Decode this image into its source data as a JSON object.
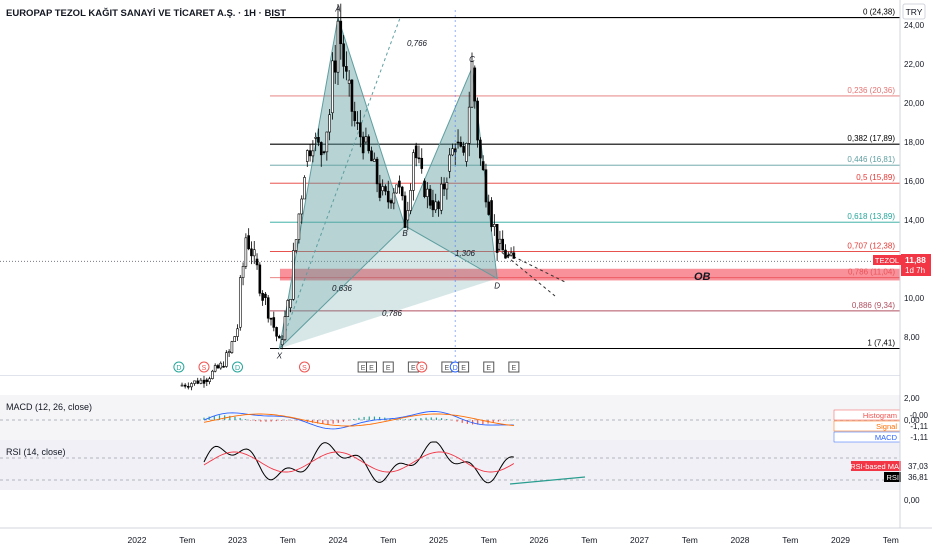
{
  "header": {
    "title": "EUROPAP TEZOL KAĞIT SANAYİ VE TİCARET A.Ş. · 1H · BIST",
    "currency": "TRY"
  },
  "colors": {
    "up": "#26a69a",
    "down": "#ef5350",
    "candle": "#000000",
    "harmonic_fill": "#5f9ea0",
    "ob_fill": "#f23645",
    "macd_line": "#2962ff",
    "signal_line": "#ff6d00",
    "rsi_line": "#000000",
    "rsi_ma": "#f23645",
    "trend_line": "#2a9d8f"
  },
  "main_chart": {
    "price_axis": {
      "ticks": [
        "24,00",
        "22,00",
        "20,00",
        "18,00",
        "16,00",
        "14,00",
        "12,00",
        "10,00",
        "8,00"
      ],
      "min": 6.0,
      "max": 25.0
    },
    "fib_levels": [
      {
        "label": "0 (24,38)",
        "value": 24.38,
        "color": "#000000"
      },
      {
        "label": "0,236 (20,36)",
        "value": 20.36,
        "color": "#e57373"
      },
      {
        "label": "0,382 (17,89)",
        "value": 17.89,
        "color": "#000000"
      },
      {
        "label": "0,446 (16,81)",
        "value": 16.81,
        "color": "#5f9ea0"
      },
      {
        "label": "0,5 (15,89)",
        "value": 15.89,
        "color": "#e53935"
      },
      {
        "label": "0,618 (13,89)",
        "value": 13.89,
        "color": "#26a69a"
      },
      {
        "label": "0,707 (12,38)",
        "value": 12.38,
        "color": "#e53935"
      },
      {
        "label": "0,786 (11,04)",
        "value": 11.04,
        "color": "#e57373"
      },
      {
        "label": "0,886 (9,34)",
        "value": 9.34,
        "color": "#b05060"
      },
      {
        "label": "1 (7,41)",
        "value": 7.41,
        "color": "#000000"
      }
    ],
    "pattern_points": [
      {
        "label": "X",
        "date": "2023-06",
        "value": 7.41
      },
      {
        "label": "A",
        "date": "2024-01",
        "value": 24.38
      },
      {
        "label": "B",
        "date": "2024-09",
        "value": 13.7
      },
      {
        "label": "C",
        "date": "2025-05",
        "value": 21.8
      },
      {
        "label": "D",
        "date": "2025-08",
        "value": 11.0
      }
    ],
    "ratio_labels": [
      "0,766",
      "0,636",
      "1,306",
      "0,786"
    ],
    "ob_label": "OB",
    "ob_zone": {
      "top": 11.5,
      "bottom": 10.9
    },
    "current_price": 11.88,
    "ticker": {
      "symbol": "TEZOL",
      "price": "11,88",
      "countdown": "1d 7h"
    },
    "event_markers": [
      {
        "text": "D",
        "date": "2022-06",
        "color": "#26a69a"
      },
      {
        "text": "S",
        "date": "2022-09",
        "color": "#ef5350"
      },
      {
        "text": "D",
        "date": "2023-01",
        "color": "#26a69a"
      },
      {
        "text": "S",
        "date": "2023-09",
        "color": "#ef5350"
      },
      {
        "text": "E",
        "date": "2024-04",
        "color": "#555555"
      },
      {
        "text": "E",
        "date": "2024-05",
        "color": "#555555"
      },
      {
        "text": "E",
        "date": "2024-07",
        "color": "#555555"
      },
      {
        "text": "E",
        "date": "2024-10",
        "color": "#555555"
      },
      {
        "text": "S",
        "date": "2024-11",
        "color": "#ef5350"
      },
      {
        "text": "E",
        "date": "2025-02",
        "color": "#555555"
      },
      {
        "text": "D",
        "date": "2025-03",
        "color": "#2962ff"
      },
      {
        "text": "E",
        "date": "2025-04",
        "color": "#555555"
      },
      {
        "text": "E",
        "date": "2025-07",
        "color": "#555555"
      },
      {
        "text": "E",
        "date": "2025-10",
        "color": "#555555"
      }
    ]
  },
  "macd": {
    "label": "MACD (12, 26, close)",
    "axis_ticks": [
      "2,00",
      "0,00"
    ],
    "legend": [
      {
        "name": "Histogram",
        "value": "-0,00",
        "color": "#ef5350"
      },
      {
        "name": "Signal",
        "value": "-1,11",
        "color": "#ff6d00"
      },
      {
        "name": "MACD",
        "value": "-1,11",
        "color": "#2962ff"
      }
    ]
  },
  "rsi": {
    "label": "RSI (14, close)",
    "axis_ticks": [
      "0,00"
    ],
    "legend": [
      {
        "name": "RSI-based MA",
        "value": "37,03",
        "color": "#f23645"
      },
      {
        "name": "RSI",
        "value": "36,81",
        "color": "#000000"
      }
    ]
  },
  "time_axis": [
    "2022",
    "Tem",
    "2023",
    "Tem",
    "2024",
    "Tem",
    "2025",
    "Tem",
    "2026",
    "Tem",
    "2027",
    "Tem",
    "2028",
    "Tem",
    "2029",
    "Tem"
  ],
  "chart_data": {
    "type": "line",
    "title": "EUROPAP TEZOL KAĞIT SANAYİ VE TİCARET A.Ş. · 1H · BIST",
    "xlabel": "",
    "ylabel": "",
    "ylim": [
      6,
      25
    ],
    "x": [
      "2022-06",
      "2022-09",
      "2022-11",
      "2022-12",
      "2023-01",
      "2023-02",
      "2023-03",
      "2023-04",
      "2023-05",
      "2023-06",
      "2023-07",
      "2023-08",
      "2023-09",
      "2023-10",
      "2023-11",
      "2023-12",
      "2024-01",
      "2024-02",
      "2024-03",
      "2024-04",
      "2024-05",
      "2024-06",
      "2024-07",
      "2024-08",
      "2024-09",
      "2024-10",
      "2024-11",
      "2024-12",
      "2025-01",
      "2025-02",
      "2025-03",
      "2025-04",
      "2025-05",
      "2025-06",
      "2025-07",
      "2025-08",
      "2025-09",
      "2025-10"
    ],
    "series": [
      {
        "name": "TEZOL",
        "values": [
          5.5,
          5.8,
          6.5,
          7.2,
          8.5,
          13.2,
          12.0,
          10.2,
          9.0,
          7.6,
          9.5,
          13.0,
          17.0,
          18.2,
          17.5,
          19.5,
          24.2,
          21.0,
          19.0,
          18.0,
          17.0,
          15.5,
          15.0,
          16.0,
          14.0,
          17.8,
          16.0,
          15.0,
          14.5,
          16.5,
          18.0,
          17.0,
          21.8,
          17.0,
          15.0,
          12.8,
          12.2,
          11.9
        ]
      }
    ]
  }
}
